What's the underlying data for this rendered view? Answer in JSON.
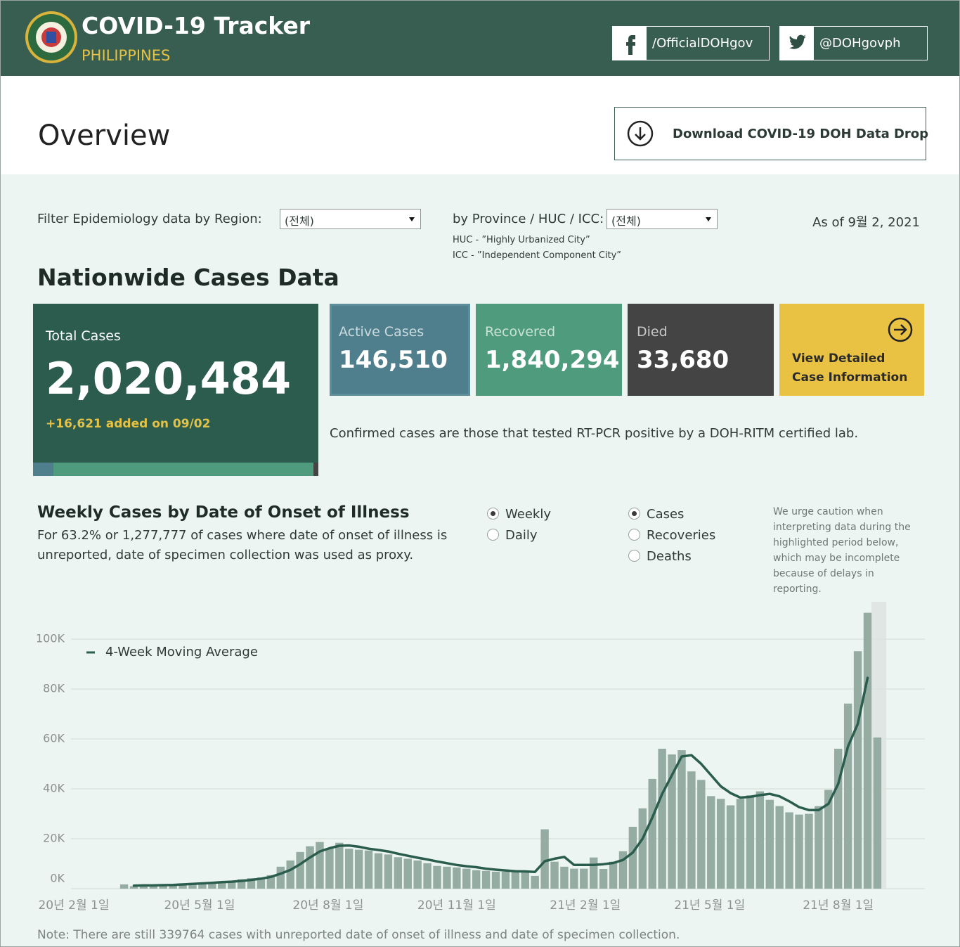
{
  "header": {
    "title": "COVID-19 Tracker",
    "subtitle": "PHILIPPINES",
    "facebook": "/OfficialDOHgov",
    "twitter": "@DOHgovph"
  },
  "overview": {
    "title": "Overview",
    "download": "Download COVID-19 DOH Data Drop"
  },
  "filters": {
    "region_label": "Filter Epidemiology data by Region:",
    "region_value": "(전체)",
    "province_label": "by Province / HUC / ICC:",
    "province_value": "(전체)",
    "as_of": "As of 9월 2, 2021",
    "huc_note": "HUC - ”Highly Urbanized City”",
    "icc_note": "ICC - ”Independent Component City”"
  },
  "nationwide": {
    "title": "Nationwide Cases Data",
    "total": {
      "label": "Total Cases",
      "value": 2020484,
      "value_label": "2,020,484",
      "added": "+16,621 added on 09/02"
    },
    "cards": [
      {
        "label": "Active Cases",
        "value": 146510,
        "value_label": "146,510",
        "color": "#4f7f8d"
      },
      {
        "label": "Recovered",
        "value": 1840294,
        "value_label": "1,840,294",
        "color": "#4e9b7e"
      },
      {
        "label": "Died",
        "value": 33680,
        "value_label": "33,680",
        "color": "#444444"
      }
    ],
    "view_detail": [
      "View Detailed",
      "Case Information"
    ],
    "note": "Confirmed cases are those that tested RT-PCR positive by a DOH-RITM certified lab."
  },
  "options": {
    "period": [
      "Weekly",
      "Daily"
    ],
    "period_selected": 0,
    "metric": [
      "Cases",
      "Recoveries",
      "Deaths"
    ],
    "metric_selected": 0,
    "caution": [
      "We urge caution when",
      "interpreting data during the",
      "highlighted period below,",
      "which may be incomplete",
      "because of delays in",
      "reporting."
    ]
  },
  "chart_data": {
    "type": "bar",
    "title": "Weekly Cases by Date of Onset of Illness",
    "subtitle": [
      "For 63.2% or 1,277,777 of cases where date of onset of illness is",
      "unreported, date of specimen collection was used as proxy."
    ],
    "x": [
      "2020-03-08",
      "2020-03-15",
      "2020-03-22",
      "2020-03-29",
      "2020-04-05",
      "2020-04-12",
      "2020-04-19",
      "2020-04-26",
      "2020-05-03",
      "2020-05-10",
      "2020-05-17",
      "2020-05-24",
      "2020-05-31",
      "2020-06-07",
      "2020-06-14",
      "2020-06-21",
      "2020-06-28",
      "2020-07-05",
      "2020-07-12",
      "2020-07-19",
      "2020-07-26",
      "2020-08-02",
      "2020-08-09",
      "2020-08-16",
      "2020-08-23",
      "2020-08-30",
      "2020-09-06",
      "2020-09-13",
      "2020-09-20",
      "2020-09-27",
      "2020-10-04",
      "2020-10-11",
      "2020-10-18",
      "2020-10-25",
      "2020-11-01",
      "2020-11-08",
      "2020-11-15",
      "2020-11-22",
      "2020-11-29",
      "2020-12-06",
      "2020-12-13",
      "2020-12-20",
      "2020-12-27",
      "2021-01-03",
      "2021-01-10",
      "2021-01-17",
      "2021-01-24",
      "2021-01-31",
      "2021-02-07",
      "2021-02-14",
      "2021-02-21",
      "2021-02-28",
      "2021-03-07",
      "2021-03-14",
      "2021-03-21",
      "2021-03-28",
      "2021-04-04",
      "2021-04-11",
      "2021-04-18",
      "2021-04-25",
      "2021-05-02",
      "2021-05-09",
      "2021-05-16",
      "2021-05-23",
      "2021-05-30",
      "2021-06-06",
      "2021-06-13",
      "2021-06-20",
      "2021-06-27",
      "2021-07-04",
      "2021-07-11",
      "2021-07-18",
      "2021-07-25",
      "2021-08-01",
      "2021-08-08",
      "2021-08-15",
      "2021-08-22",
      "2021-08-29"
    ],
    "series": [
      {
        "type": "bar",
        "color": "#95aca3",
        "values": [
          1700,
          1000,
          1200,
          1200,
          1400,
          1700,
          2000,
          2300,
          2300,
          2600,
          2900,
          3100,
          3800,
          4200,
          4500,
          5400,
          8800,
          11300,
          14700,
          17000,
          18700,
          16100,
          18400,
          16000,
          15600,
          15300,
          14200,
          13700,
          12600,
          12000,
          11300,
          10200,
          9100,
          8800,
          8500,
          8000,
          7400,
          7100,
          6800,
          6800,
          6800,
          6800,
          5100,
          23800,
          10800,
          8800,
          8000,
          8000,
          12500,
          7900,
          10800,
          15000,
          24800,
          32200,
          44000,
          56100,
          53800,
          55500,
          47000,
          43600,
          37100,
          36000,
          33400,
          36000,
          37400,
          39000,
          35600,
          33100,
          30600,
          29700,
          30000,
          33100,
          39600,
          56100,
          74200,
          95200,
          110600,
          60600
        ]
      },
      {
        "type": "line",
        "name": "4-Week Moving Average",
        "color": "#2b5d4e",
        "values": [
          null,
          1200,
          1300,
          1300,
          1400,
          1500,
          1700,
          1900,
          2100,
          2300,
          2600,
          2800,
          3100,
          3500,
          4000,
          4700,
          6000,
          7500,
          9800,
          12500,
          14900,
          16200,
          17200,
          17300,
          16800,
          16000,
          15500,
          14900,
          14000,
          13200,
          12400,
          11700,
          10900,
          10200,
          9500,
          9000,
          8600,
          8000,
          7600,
          7300,
          7000,
          6900,
          6700,
          11000,
          12000,
          12700,
          9500,
          9500,
          9500,
          9800,
          10300,
          11500,
          14500,
          20000,
          28500,
          38000,
          45500,
          53000,
          53500,
          50000,
          45500,
          41000,
          38300,
          36500,
          36800,
          37500,
          38000,
          37000,
          35000,
          32700,
          31500,
          31500,
          34000,
          42000,
          57000,
          66000,
          84500,
          null
        ]
      }
    ],
    "xlim": [
      "2020-01-30",
      "2021-10-02"
    ],
    "xticks": [
      {
        "value": "2020-02-01",
        "label": "20년 2월 1일"
      },
      {
        "value": "2020-05-01",
        "label": "20년 5월 1일"
      },
      {
        "value": "2020-08-01",
        "label": "20년 8월 1일"
      },
      {
        "value": "2020-11-01",
        "label": "20년 11월 1일"
      },
      {
        "value": "2021-02-01",
        "label": "21년 2월 1일"
      },
      {
        "value": "2021-05-01",
        "label": "21년 5월 1일"
      },
      {
        "value": "2021-08-01",
        "label": "21년 8월 1일"
      }
    ],
    "ylim": [
      0,
      115000
    ],
    "yticks": [
      {
        "value": 0,
        "label": "0K"
      },
      {
        "value": 20000,
        "label": "20K"
      },
      {
        "value": 40000,
        "label": "40K"
      },
      {
        "value": 60000,
        "label": "60K"
      },
      {
        "value": 80000,
        "label": "80K"
      },
      {
        "value": 100000,
        "label": "100K"
      }
    ],
    "grid": true,
    "legend": "top-left"
  },
  "footer_note": "Note: There are still 339764 cases with unreported date of onset of illness and date of specimen collection."
}
